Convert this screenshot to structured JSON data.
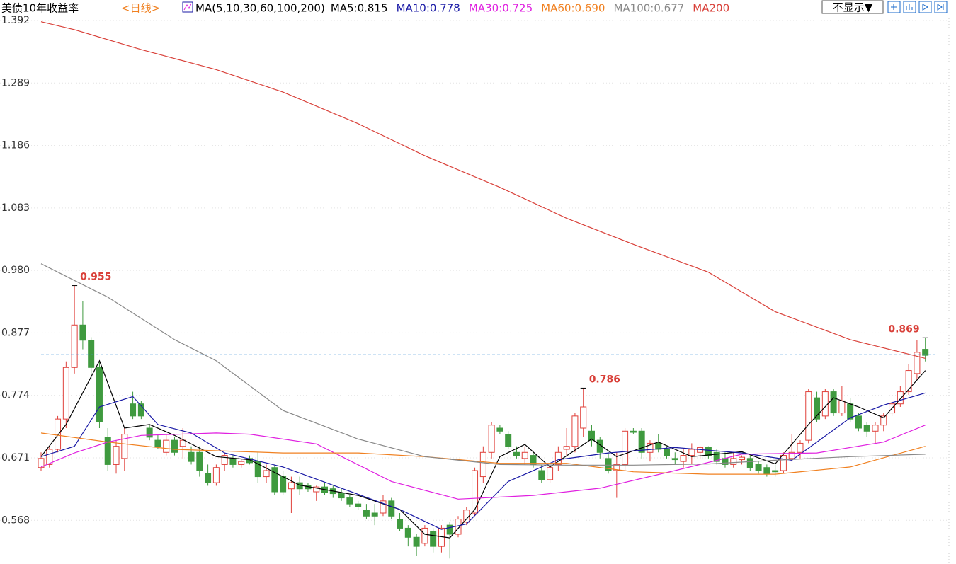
{
  "chart_data": {
    "type": "candlestick",
    "title": "美债10年收益率",
    "period": "<日线>",
    "indicator": "MA(5,10,30,60,100,200)",
    "toggle": "不显示▼",
    "ylim": [
      0.496,
      1.392
    ],
    "yticks": [
      0.568,
      0.671,
      0.774,
      0.877,
      {
        "value": 0.98,
        "label": "0.980"
      },
      1.083,
      1.186,
      1.289,
      1.392
    ],
    "grid": true,
    "last_price": 0.841,
    "up_color": "#e0403a",
    "down_color": "#3f9a3f",
    "candles": {
      "open": [
        0.655,
        0.66,
        0.685,
        0.735,
        0.82,
        0.89,
        0.865,
        0.82,
        0.705,
        0.66,
        0.67,
        0.76,
        0.76,
        0.72,
        0.7,
        0.68,
        0.7,
        0.69,
        0.68,
        0.68,
        0.645,
        0.63,
        0.66,
        0.67,
        0.66,
        0.67,
        0.665,
        0.64,
        0.655,
        0.64,
        0.62,
        0.63,
        0.625,
        0.615,
        0.623,
        0.62,
        0.612,
        0.605,
        0.595,
        0.585,
        0.58,
        0.58,
        0.6,
        0.57,
        0.555,
        0.54,
        0.53,
        0.55,
        0.525,
        0.56,
        0.545,
        0.565,
        0.58,
        0.64,
        0.68,
        0.72,
        0.71,
        0.68,
        0.67,
        0.675,
        0.65,
        0.635,
        0.66,
        0.685,
        0.69,
        0.72,
        0.715,
        0.7,
        0.67,
        0.65,
        0.66,
        0.715,
        0.715,
        0.68,
        0.695,
        0.685,
        0.67,
        0.665,
        0.675,
        0.68,
        0.688,
        0.68,
        0.67,
        0.66,
        0.668,
        0.67,
        0.66,
        0.655,
        0.65,
        0.65,
        0.67,
        0.68,
        0.7,
        0.77,
        0.74,
        0.78,
        0.745,
        0.76,
        0.74,
        0.725,
        0.715,
        0.725,
        0.745,
        0.76,
        0.78,
        0.81,
        0.85
      ],
      "high": [
        0.68,
        0.69,
        0.74,
        0.83,
        0.955,
        0.93,
        0.87,
        0.83,
        0.72,
        0.7,
        0.72,
        0.78,
        0.765,
        0.725,
        0.71,
        0.71,
        0.705,
        0.72,
        0.69,
        0.69,
        0.66,
        0.66,
        0.68,
        0.675,
        0.67,
        0.675,
        0.68,
        0.66,
        0.66,
        0.65,
        0.64,
        0.64,
        0.63,
        0.625,
        0.63,
        0.625,
        0.622,
        0.61,
        0.6,
        0.595,
        0.595,
        0.61,
        0.605,
        0.58,
        0.56,
        0.545,
        0.56,
        0.555,
        0.56,
        0.565,
        0.575,
        0.59,
        0.655,
        0.69,
        0.73,
        0.725,
        0.715,
        0.69,
        0.69,
        0.68,
        0.66,
        0.66,
        0.69,
        0.72,
        0.745,
        0.786,
        0.725,
        0.705,
        0.68,
        0.68,
        0.72,
        0.72,
        0.72,
        0.7,
        0.71,
        0.69,
        0.68,
        0.685,
        0.695,
        0.69,
        0.69,
        0.685,
        0.68,
        0.68,
        0.675,
        0.675,
        0.665,
        0.66,
        0.66,
        0.68,
        0.71,
        0.7,
        0.785,
        0.78,
        0.785,
        0.785,
        0.79,
        0.77,
        0.745,
        0.73,
        0.73,
        0.745,
        0.765,
        0.79,
        0.825,
        0.865,
        0.869
      ],
      "low": [
        0.65,
        0.655,
        0.68,
        0.72,
        0.81,
        0.85,
        0.8,
        0.72,
        0.65,
        0.645,
        0.65,
        0.735,
        0.735,
        0.7,
        0.685,
        0.675,
        0.675,
        0.67,
        0.66,
        0.64,
        0.625,
        0.625,
        0.65,
        0.655,
        0.655,
        0.66,
        0.63,
        0.63,
        0.61,
        0.61,
        0.58,
        0.61,
        0.615,
        0.6,
        0.61,
        0.605,
        0.6,
        0.59,
        0.585,
        0.57,
        0.56,
        0.575,
        0.57,
        0.55,
        0.525,
        0.51,
        0.525,
        0.515,
        0.515,
        0.505,
        0.54,
        0.56,
        0.575,
        0.63,
        0.67,
        0.71,
        0.685,
        0.67,
        0.66,
        0.655,
        0.63,
        0.63,
        0.65,
        0.675,
        0.68,
        0.705,
        0.69,
        0.67,
        0.645,
        0.605,
        0.65,
        0.71,
        0.67,
        0.665,
        0.68,
        0.67,
        0.66,
        0.655,
        0.66,
        0.67,
        0.67,
        0.66,
        0.655,
        0.655,
        0.66,
        0.65,
        0.645,
        0.64,
        0.64,
        0.645,
        0.665,
        0.67,
        0.695,
        0.73,
        0.735,
        0.74,
        0.74,
        0.73,
        0.715,
        0.705,
        0.695,
        0.715,
        0.74,
        0.755,
        0.775,
        0.8,
        0.83
      ],
      "close": [
        0.67,
        0.685,
        0.735,
        0.82,
        0.89,
        0.865,
        0.82,
        0.73,
        0.66,
        0.69,
        0.71,
        0.74,
        0.74,
        0.705,
        0.69,
        0.7,
        0.68,
        0.7,
        0.665,
        0.65,
        0.63,
        0.655,
        0.675,
        0.66,
        0.665,
        0.663,
        0.64,
        0.65,
        0.615,
        0.615,
        0.63,
        0.62,
        0.62,
        0.623,
        0.614,
        0.612,
        0.605,
        0.595,
        0.59,
        0.575,
        0.575,
        0.6,
        0.575,
        0.555,
        0.54,
        0.525,
        0.555,
        0.525,
        0.555,
        0.545,
        0.57,
        0.585,
        0.65,
        0.68,
        0.725,
        0.715,
        0.69,
        0.675,
        0.68,
        0.66,
        0.635,
        0.655,
        0.68,
        0.69,
        0.74,
        0.755,
        0.7,
        0.68,
        0.65,
        0.66,
        0.715,
        0.713,
        0.68,
        0.695,
        0.685,
        0.675,
        0.668,
        0.675,
        0.685,
        0.688,
        0.675,
        0.665,
        0.66,
        0.67,
        0.672,
        0.655,
        0.65,
        0.645,
        0.648,
        0.675,
        0.68,
        0.695,
        0.78,
        0.735,
        0.78,
        0.745,
        0.765,
        0.735,
        0.72,
        0.715,
        0.725,
        0.74,
        0.76,
        0.78,
        0.815,
        0.845,
        0.84
      ]
    },
    "annotations": [
      {
        "label": "0.955",
        "candle": 4
      },
      {
        "label": "0.786",
        "candle": 65
      },
      {
        "label": "0.869",
        "candle": 106
      }
    ],
    "series": [
      {
        "name": "MA5:0.815",
        "color": "#000000",
        "x": [
          0,
          3,
          7,
          10,
          13,
          16,
          21,
          25,
          31,
          38,
          43,
          46,
          49,
          52,
          55,
          58,
          61,
          66,
          69,
          74,
          78,
          84,
          88,
          92,
          95,
          98,
          101,
          106
        ],
        "values": [
          0.673,
          0.726,
          0.831,
          0.72,
          0.726,
          0.708,
          0.673,
          0.668,
          0.626,
          0.609,
          0.586,
          0.545,
          0.539,
          0.586,
          0.673,
          0.693,
          0.656,
          0.702,
          0.673,
          0.697,
          0.673,
          0.681,
          0.661,
          0.726,
          0.77,
          0.755,
          0.737,
          0.815
        ]
      },
      {
        "name": "MA10:0.778",
        "color": "#1a1aa6",
        "x": [
          0,
          4,
          7,
          11,
          14,
          18,
          22,
          29,
          36,
          43,
          48,
          51,
          56,
          62,
          68,
          76,
          84,
          90,
          97,
          101,
          106
        ],
        "values": [
          0.673,
          0.69,
          0.755,
          0.772,
          0.726,
          0.712,
          0.679,
          0.656,
          0.621,
          0.586,
          0.553,
          0.562,
          0.632,
          0.668,
          0.679,
          0.688,
          0.679,
          0.667,
          0.737,
          0.758,
          0.778
        ]
      },
      {
        "name": "MA30:0.725",
        "color": "#e020e0",
        "x": [
          0,
          4,
          8,
          12,
          21,
          25,
          33,
          42,
          50,
          59,
          67,
          76,
          84,
          93,
          101,
          106
        ],
        "values": [
          0.656,
          0.679,
          0.697,
          0.708,
          0.712,
          0.71,
          0.694,
          0.632,
          0.603,
          0.609,
          0.621,
          0.65,
          0.677,
          0.679,
          0.697,
          0.725
        ]
      },
      {
        "name": "MA60:0.690",
        "color": "#f08020",
        "x": [
          0,
          8,
          16,
          29,
          38,
          46,
          55,
          63,
          71,
          80,
          88,
          97,
          106
        ],
        "values": [
          0.712,
          0.697,
          0.685,
          0.679,
          0.679,
          0.673,
          0.662,
          0.662,
          0.648,
          0.644,
          0.644,
          0.656,
          0.69
        ]
      },
      {
        "name": "MA100:0.677",
        "color": "#888888",
        "x": [
          0,
          8,
          16,
          21,
          29,
          38,
          46,
          55,
          63,
          71,
          80,
          88,
          97,
          106
        ],
        "values": [
          0.991,
          0.936,
          0.866,
          0.831,
          0.749,
          0.702,
          0.673,
          0.66,
          0.659,
          0.659,
          0.661,
          0.667,
          0.673,
          0.677
        ]
      },
      {
        "name": "MA200",
        "color": "#d9413a",
        "x": [
          0,
          4,
          12,
          21,
          29,
          38,
          46,
          55,
          63,
          71,
          80,
          88,
          97,
          104,
          106
        ],
        "values": [
          1.39,
          1.377,
          1.344,
          1.311,
          1.274,
          1.222,
          1.169,
          1.117,
          1.066,
          1.023,
          0.977,
          0.912,
          0.866,
          0.842,
          0.835
        ]
      }
    ]
  }
}
